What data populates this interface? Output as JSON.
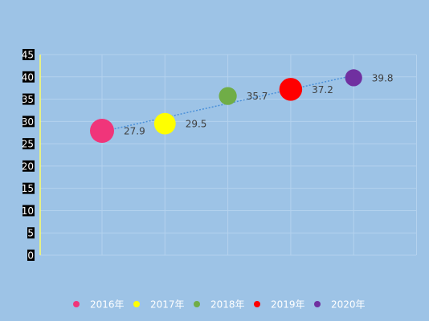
{
  "chart_data": {
    "type": "bubble",
    "title": "",
    "xlabel": "",
    "ylabel": "",
    "ylim": [
      0,
      45
    ],
    "yticks": [
      "0",
      "5",
      "10",
      "15",
      "20",
      "25",
      "30",
      "35",
      "40",
      "45"
    ],
    "grid": true,
    "trendline": "linear",
    "legend": "bottom",
    "series": [
      {
        "name": "2016年",
        "x": 1,
        "y": 27.9,
        "size": 1.0,
        "label": "27.9",
        "color": "#f0357a"
      },
      {
        "name": "2017年",
        "x": 2,
        "y": 29.5,
        "size": 0.8,
        "label": "29.5",
        "color": "#ffff00"
      },
      {
        "name": "2018年",
        "x": 3,
        "y": 35.7,
        "size": 0.55,
        "label": "35.7",
        "color": "#70ad47"
      },
      {
        "name": "2019年",
        "x": 4,
        "y": 37.2,
        "size": 0.9,
        "label": "37.2",
        "color": "#ff0000"
      },
      {
        "name": "2020年",
        "x": 5,
        "y": 39.8,
        "size": 0.5,
        "label": "39.8",
        "color": "#7030a0"
      }
    ],
    "colors": {
      "background": "#9dc3e6",
      "axis_line": "#ffff66",
      "trendline": "#4a90d9",
      "grid": "#b4d2ee"
    }
  }
}
